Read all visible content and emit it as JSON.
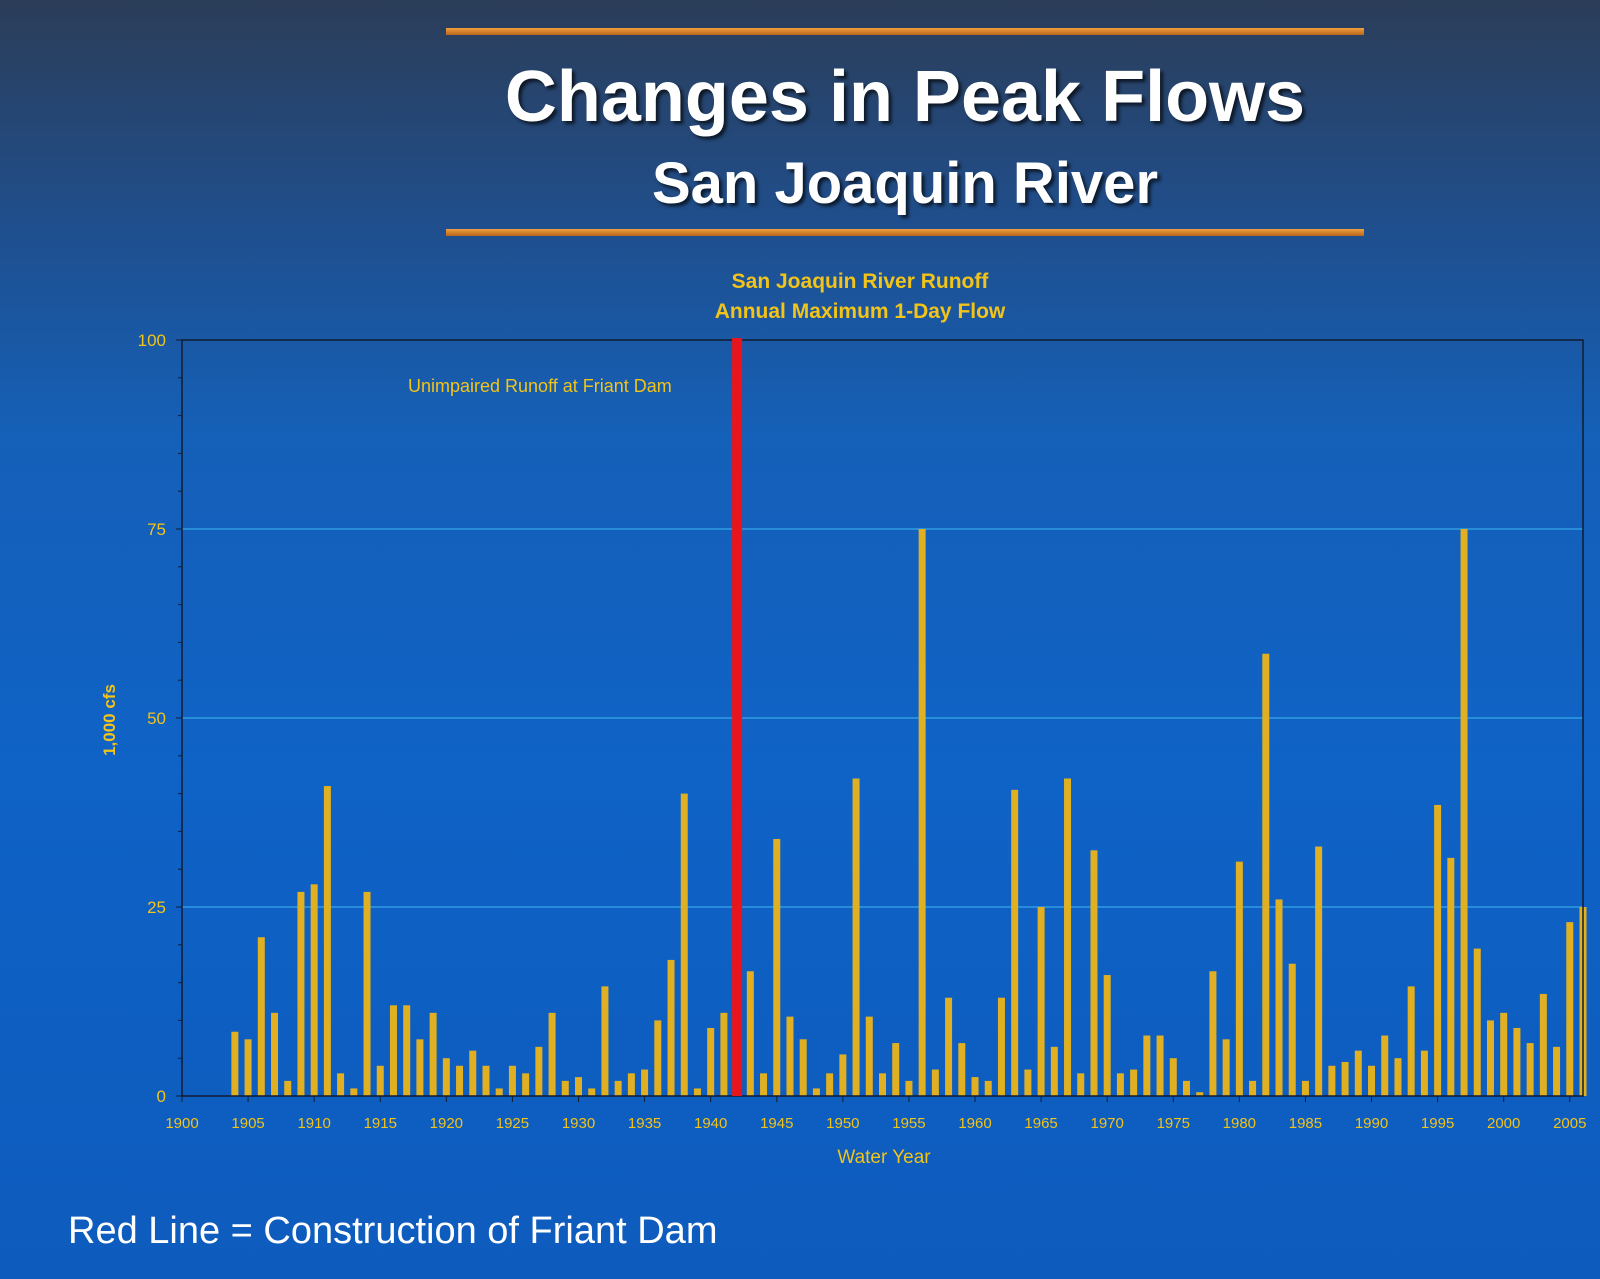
{
  "slide": {
    "title": "Changes in Peak Flows",
    "subtitle": "San Joaquin River",
    "footer_note": "Red Line = Construction of Friant Dam"
  },
  "colors": {
    "bar": "#e0b022",
    "marker_line": "#e8161c",
    "label_text": "#f2c318",
    "gridline": "#36a8e8",
    "rule": "#c8782a",
    "title_text": "#ffffff"
  },
  "chart_data": {
    "type": "bar",
    "title": "San Joaquin River Runoff",
    "subtitle": "Annual Maximum 1-Day Flow",
    "annotation": "Unimpaired Runoff at Friant Dam",
    "xlabel": "Water Year",
    "ylabel": "1,000 cfs",
    "xlim": [
      1900,
      2006
    ],
    "ylim": [
      0,
      100
    ],
    "xticks": [
      1900,
      1905,
      1910,
      1915,
      1920,
      1925,
      1930,
      1935,
      1940,
      1945,
      1950,
      1955,
      1960,
      1965,
      1970,
      1975,
      1980,
      1985,
      1990,
      1995,
      2000,
      2005
    ],
    "yticks": [
      0,
      25,
      50,
      75,
      100
    ],
    "grid": "horizontal",
    "marker_line_year": 1942,
    "years": [
      1904,
      1905,
      1906,
      1907,
      1908,
      1909,
      1910,
      1911,
      1912,
      1913,
      1914,
      1915,
      1916,
      1917,
      1918,
      1919,
      1920,
      1921,
      1922,
      1923,
      1924,
      1925,
      1926,
      1927,
      1928,
      1929,
      1930,
      1931,
      1932,
      1933,
      1934,
      1935,
      1936,
      1937,
      1938,
      1939,
      1940,
      1941,
      1942,
      1943,
      1944,
      1945,
      1946,
      1947,
      1948,
      1949,
      1950,
      1951,
      1952,
      1953,
      1954,
      1955,
      1956,
      1957,
      1958,
      1959,
      1960,
      1961,
      1962,
      1963,
      1964,
      1965,
      1966,
      1967,
      1968,
      1969,
      1970,
      1971,
      1972,
      1973,
      1974,
      1975,
      1976,
      1977,
      1978,
      1979,
      1980,
      1981,
      1982,
      1983,
      1984,
      1985,
      1986,
      1987,
      1988,
      1989,
      1990,
      1991,
      1992,
      1993,
      1994,
      1995,
      1996,
      1997,
      1998,
      1999,
      2000,
      2001,
      2002,
      2003,
      2004,
      2005,
      2006
    ],
    "values": [
      8.5,
      7.5,
      21,
      11,
      2,
      27,
      28,
      41,
      3,
      1,
      27,
      4,
      12,
      12,
      7.5,
      11,
      5,
      4,
      6,
      4,
      1,
      4,
      3,
      6.5,
      11,
      2,
      2.5,
      1,
      14.5,
      2,
      3,
      3.5,
      10,
      18,
      40,
      1,
      9,
      11,
      0,
      16.5,
      3,
      34,
      10.5,
      7.5,
      1,
      3,
      5.5,
      42,
      10.5,
      3,
      7,
      2,
      75,
      3.5,
      13,
      7,
      2.5,
      2,
      13,
      40.5,
      3.5,
      25,
      6.5,
      42,
      3,
      32.5,
      16,
      3,
      3.5,
      8,
      8,
      5,
      2,
      0.5,
      16.5,
      7.5,
      31,
      2,
      58.5,
      26,
      17.5,
      2,
      33,
      4,
      4.5,
      6,
      4,
      8,
      5,
      14.5,
      6,
      38.5,
      31.5,
      75,
      19.5,
      10,
      11,
      9,
      7,
      13.5,
      6.5,
      23,
      25
    ]
  }
}
